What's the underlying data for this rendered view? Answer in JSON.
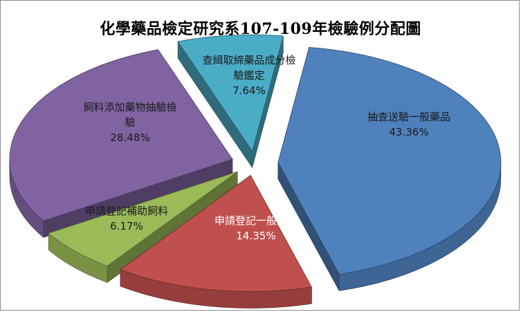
{
  "chart_data": {
    "type": "pie",
    "title": "化學藥品檢定研究系107-109年檢驗例分配圖",
    "slices": [
      {
        "label": "抽查送驗一般藥品",
        "value": 43.36,
        "value_label": "43.36%",
        "color": "#4F81BD",
        "text_color": "#1a1a1a"
      },
      {
        "label": "申請登記一般藥品",
        "value": 14.35,
        "value_label": "14.35%",
        "color": "#C0504D",
        "text_color": "#ffffff"
      },
      {
        "label": "申請登記補助飼料",
        "value": 6.17,
        "value_label": "6.17%",
        "color": "#9BBB59",
        "text_color": "#1a1a1a"
      },
      {
        "label": "飼料添加藥物抽驗檢驗",
        "value": 28.48,
        "value_label": "28.48%",
        "color": "#8064A2",
        "text_color": "#1a1a1a"
      },
      {
        "label": "查緝取締藥品成分檢驗鑑定",
        "value": 7.64,
        "value_label": "7.64%",
        "color": "#4BACC6",
        "text_color": "#1a1a1a"
      }
    ],
    "legend": "none",
    "style": "3d-exploded"
  }
}
